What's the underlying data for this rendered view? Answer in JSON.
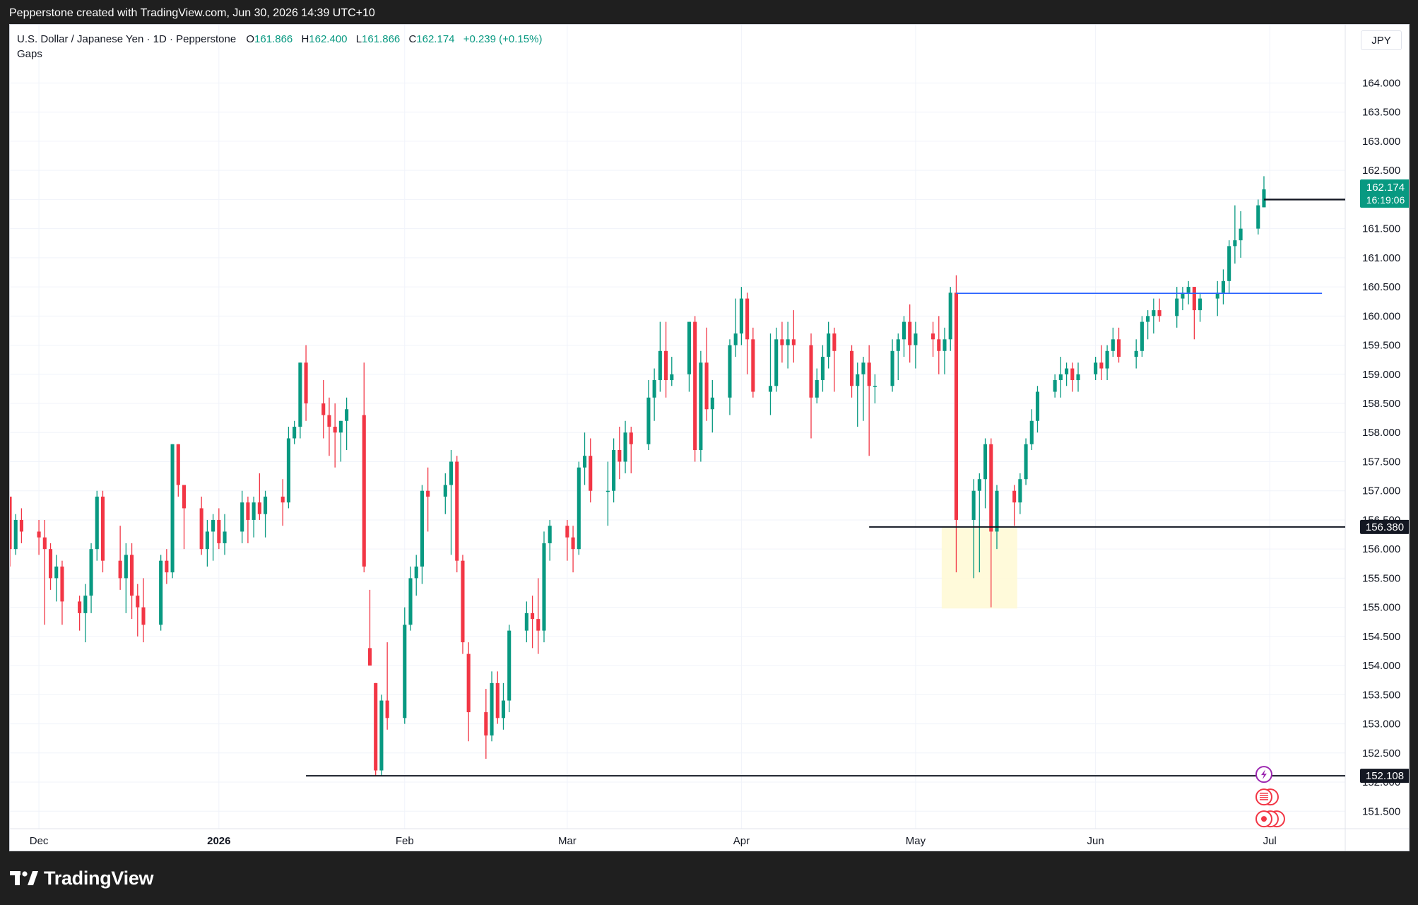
{
  "header": {
    "attribution": "Pepperstone created with TradingView.com, Jun 30, 2026 14:39 UTC+10"
  },
  "legend": {
    "symbol": "U.S. Dollar / Japanese Yen · 1D · Pepperstone",
    "open_label": "O",
    "open": "161.866",
    "high_label": "H",
    "high": "162.400",
    "low_label": "L",
    "low": "161.866",
    "close_label": "C",
    "close": "162.174",
    "change": "+0.239 (+0.15%)",
    "indicator": "Gaps"
  },
  "currency_button": "JPY",
  "footer": {
    "brand": "TradingView"
  },
  "colors": {
    "up": "#089981",
    "down": "#f23645",
    "grid": "#f0f3fa",
    "level_line": "#131722",
    "resistance_line": "#2962ff",
    "highlight_zone": "#fff9d6"
  },
  "chart_data": {
    "type": "candlestick",
    "title": "",
    "ylim": [
      151.2,
      165.0
    ],
    "y_ticks": [
      "151.500",
      "152.000",
      "152.500",
      "153.000",
      "153.500",
      "154.000",
      "154.500",
      "155.000",
      "155.500",
      "156.000",
      "156.500",
      "157.000",
      "157.500",
      "158.000",
      "158.500",
      "159.000",
      "159.500",
      "160.000",
      "160.500",
      "161.000",
      "161.500",
      "162.000",
      "162.500",
      "163.000",
      "163.500",
      "164.000"
    ],
    "x_labels": [
      {
        "label": "Dec",
        "date": "2025-12-01"
      },
      {
        "label": "2026",
        "date": "2026-01-01"
      },
      {
        "label": "Feb",
        "date": "2026-02-02"
      },
      {
        "label": "Mar",
        "date": "2026-03-02"
      },
      {
        "label": "Apr",
        "date": "2026-04-01"
      },
      {
        "label": "May",
        "date": "2026-05-01"
      },
      {
        "label": "Jun",
        "date": "2026-06-01"
      },
      {
        "label": "Jul",
        "date": "2026-07-01"
      }
    ],
    "x_range": [
      "2025-11-26",
      "2026-07-14"
    ],
    "candles": [
      [
        "2025-11-26",
        156.9,
        156.8,
        155.7,
        156.0
      ],
      [
        "2025-11-27",
        156.0,
        156.6,
        155.9,
        156.5
      ],
      [
        "2025-11-28",
        156.5,
        156.7,
        156.1,
        156.3
      ],
      [
        "2025-12-01",
        156.3,
        156.5,
        155.9,
        156.2
      ],
      [
        "2025-12-02",
        156.2,
        156.5,
        154.7,
        156.0
      ],
      [
        "2025-12-03",
        156.0,
        156.1,
        155.3,
        155.5
      ],
      [
        "2025-12-04",
        155.5,
        155.9,
        155.1,
        155.7
      ],
      [
        "2025-12-05",
        155.7,
        155.8,
        154.7,
        155.1
      ],
      [
        "2025-12-08",
        155.1,
        155.2,
        154.6,
        154.9
      ],
      [
        "2025-12-09",
        154.9,
        155.4,
        154.4,
        155.2
      ],
      [
        "2025-12-10",
        155.2,
        156.1,
        154.9,
        156.0
      ],
      [
        "2025-12-11",
        156.0,
        157.0,
        155.8,
        156.9
      ],
      [
        "2025-12-12",
        156.9,
        157.0,
        155.6,
        155.8
      ],
      [
        "2025-12-15",
        155.8,
        156.4,
        155.3,
        155.5
      ],
      [
        "2025-12-16",
        155.5,
        156.1,
        154.9,
        155.9
      ],
      [
        "2025-12-17",
        155.9,
        156.1,
        154.8,
        155.2
      ],
      [
        "2025-12-18",
        155.2,
        155.4,
        154.5,
        155.0
      ],
      [
        "2025-12-19",
        155.0,
        155.5,
        154.4,
        154.7
      ],
      [
        "2025-12-22",
        154.7,
        155.9,
        154.6,
        155.8
      ],
      [
        "2025-12-23",
        155.8,
        156.0,
        155.4,
        155.6
      ],
      [
        "2025-12-24",
        155.6,
        157.8,
        155.5,
        157.8
      ],
      [
        "2025-12-25",
        157.8,
        157.8,
        156.9,
        157.1
      ],
      [
        "2025-12-26",
        157.1,
        157.1,
        156.0,
        156.7
      ],
      [
        "2025-12-29",
        156.7,
        156.9,
        155.9,
        156.0
      ],
      [
        "2025-12-30",
        156.0,
        156.5,
        155.7,
        156.3
      ],
      [
        "2025-12-31",
        156.3,
        156.6,
        155.8,
        156.5
      ],
      [
        "2026-01-01",
        156.5,
        156.7,
        156.0,
        156.1
      ],
      [
        "2026-01-02",
        156.1,
        156.6,
        155.9,
        156.3
      ],
      [
        "2026-01-05",
        156.3,
        157.0,
        156.1,
        156.8
      ],
      [
        "2026-01-06",
        156.8,
        156.9,
        156.1,
        156.5
      ],
      [
        "2026-01-07",
        156.5,
        156.9,
        156.2,
        156.8
      ],
      [
        "2026-01-08",
        156.8,
        157.3,
        156.5,
        156.6
      ],
      [
        "2026-01-09",
        156.6,
        157.0,
        156.2,
        156.9
      ],
      [
        "2026-01-12",
        156.9,
        157.2,
        156.4,
        156.8
      ],
      [
        "2026-01-13",
        156.8,
        158.1,
        156.7,
        157.9
      ],
      [
        "2026-01-14",
        157.9,
        158.2,
        157.8,
        158.1
      ],
      [
        "2026-01-15",
        158.1,
        159.2,
        157.9,
        159.2
      ],
      [
        "2026-01-16",
        159.2,
        159.5,
        158.2,
        158.5
      ],
      [
        "2026-01-19",
        158.5,
        158.9,
        157.9,
        158.3
      ],
      [
        "2026-01-20",
        158.3,
        158.6,
        157.6,
        158.1
      ],
      [
        "2026-01-21",
        158.1,
        158.5,
        157.4,
        158.0
      ],
      [
        "2026-01-22",
        158.0,
        158.2,
        157.5,
        158.2
      ],
      [
        "2026-01-23",
        158.2,
        158.6,
        157.7,
        158.4
      ],
      [
        "2026-01-26",
        158.3,
        159.2,
        155.6,
        155.7
      ],
      [
        "2026-01-27",
        154.3,
        155.3,
        154.0,
        154.0
      ],
      [
        "2026-01-28",
        153.7,
        153.7,
        152.1,
        152.2
      ],
      [
        "2026-01-29",
        152.2,
        153.5,
        152.1,
        153.4
      ],
      [
        "2026-01-30",
        153.4,
        154.4,
        152.9,
        153.1
      ],
      [
        "2026-02-02",
        153.1,
        155.0,
        153.0,
        154.7
      ],
      [
        "2026-02-03",
        154.7,
        155.7,
        154.6,
        155.5
      ],
      [
        "2026-02-04",
        155.5,
        155.9,
        155.2,
        155.7
      ],
      [
        "2026-02-05",
        155.7,
        157.1,
        155.4,
        157.0
      ],
      [
        "2026-02-06",
        157.0,
        157.4,
        156.3,
        156.9
      ],
      [
        "2026-02-09",
        156.9,
        157.3,
        156.6,
        157.1
      ],
      [
        "2026-02-10",
        157.1,
        157.7,
        155.9,
        157.5
      ],
      [
        "2026-02-11",
        157.5,
        157.6,
        155.6,
        155.8
      ],
      [
        "2026-02-12",
        155.8,
        155.9,
        154.2,
        154.4
      ],
      [
        "2026-02-13",
        154.2,
        154.4,
        152.7,
        153.2
      ],
      [
        "2026-02-16",
        153.2,
        153.6,
        152.4,
        152.8
      ],
      [
        "2026-02-17",
        152.8,
        153.9,
        152.7,
        153.7
      ],
      [
        "2026-02-18",
        153.7,
        153.9,
        153.0,
        153.1
      ],
      [
        "2026-02-19",
        153.1,
        153.7,
        152.9,
        153.4
      ],
      [
        "2026-02-20",
        153.4,
        154.7,
        153.2,
        154.6
      ],
      [
        "2026-02-23",
        154.6,
        155.1,
        154.4,
        154.9
      ],
      [
        "2026-02-24",
        154.9,
        155.2,
        154.3,
        154.8
      ],
      [
        "2026-02-25",
        154.8,
        155.5,
        154.2,
        154.6
      ],
      [
        "2026-02-26",
        154.6,
        156.3,
        154.4,
        156.1
      ],
      [
        "2026-02-27",
        156.1,
        156.5,
        155.8,
        156.4
      ],
      [
        "2026-03-02",
        156.4,
        156.5,
        155.8,
        156.2
      ],
      [
        "2026-03-03",
        156.2,
        156.4,
        155.6,
        156.0
      ],
      [
        "2026-03-04",
        156.0,
        157.5,
        155.9,
        157.4
      ],
      [
        "2026-03-05",
        157.4,
        158.0,
        157.1,
        157.6
      ],
      [
        "2026-03-06",
        157.6,
        157.9,
        156.8,
        157.0
      ],
      [
        "2026-03-09",
        157.0,
        157.5,
        156.4,
        157.0
      ],
      [
        "2026-03-10",
        157.0,
        157.9,
        156.8,
        157.7
      ],
      [
        "2026-03-11",
        157.7,
        158.1,
        157.2,
        157.5
      ],
      [
        "2026-03-12",
        157.5,
        158.2,
        157.3,
        158.0
      ],
      [
        "2026-03-13",
        158.0,
        158.1,
        157.3,
        157.8
      ],
      [
        "2026-03-16",
        157.8,
        158.9,
        157.7,
        158.6
      ],
      [
        "2026-03-17",
        158.6,
        159.1,
        158.2,
        158.9
      ],
      [
        "2026-03-18",
        158.9,
        159.9,
        158.7,
        159.4
      ],
      [
        "2026-03-19",
        159.4,
        159.9,
        158.6,
        158.9
      ],
      [
        "2026-03-20",
        158.9,
        159.3,
        158.8,
        159.0
      ],
      [
        "2026-03-23",
        159.0,
        159.9,
        158.7,
        159.9
      ],
      [
        "2026-03-24",
        159.9,
        160.0,
        157.5,
        157.7
      ],
      [
        "2026-03-25",
        157.7,
        159.4,
        157.5,
        159.2
      ],
      [
        "2026-03-26",
        159.2,
        159.8,
        158.2,
        158.4
      ],
      [
        "2026-03-27",
        158.4,
        158.9,
        158.0,
        158.6
      ],
      [
        "2026-03-30",
        158.6,
        159.6,
        158.3,
        159.5
      ],
      [
        "2026-03-31",
        159.5,
        160.3,
        159.3,
        159.7
      ],
      [
        "2026-04-01",
        159.7,
        160.5,
        159.5,
        160.3
      ],
      [
        "2026-04-02",
        160.3,
        160.4,
        159.0,
        159.6
      ],
      [
        "2026-04-03",
        159.6,
        159.8,
        158.6,
        158.7
      ],
      [
        "2026-04-06",
        158.7,
        159.7,
        158.3,
        158.8
      ],
      [
        "2026-04-07",
        158.8,
        159.8,
        158.7,
        159.6
      ],
      [
        "2026-04-08",
        159.6,
        159.9,
        159.2,
        159.5
      ],
      [
        "2026-04-09",
        159.5,
        159.9,
        159.1,
        159.6
      ],
      [
        "2026-04-10",
        159.6,
        160.1,
        159.2,
        159.5
      ],
      [
        "2026-04-13",
        159.5,
        159.7,
        157.9,
        158.6
      ],
      [
        "2026-04-14",
        158.6,
        159.1,
        158.5,
        158.9
      ],
      [
        "2026-04-15",
        158.9,
        159.5,
        158.7,
        159.3
      ],
      [
        "2026-04-16",
        159.3,
        159.9,
        159.1,
        159.7
      ],
      [
        "2026-04-17",
        159.7,
        159.8,
        158.7,
        159.4
      ],
      [
        "2026-04-20",
        159.4,
        159.5,
        158.6,
        158.8
      ],
      [
        "2026-04-21",
        158.8,
        159.2,
        158.1,
        159.0
      ],
      [
        "2026-04-22",
        159.0,
        159.3,
        158.2,
        159.2
      ],
      [
        "2026-04-23",
        159.2,
        159.5,
        157.6,
        158.8
      ],
      [
        "2026-04-24",
        158.8,
        159.0,
        158.5,
        158.8
      ],
      [
        "2026-04-27",
        158.8,
        159.6,
        158.7,
        159.4
      ],
      [
        "2026-04-28",
        159.4,
        159.7,
        158.9,
        159.6
      ],
      [
        "2026-04-29",
        159.6,
        160.0,
        159.3,
        159.9
      ],
      [
        "2026-04-30",
        159.9,
        160.2,
        159.2,
        159.5
      ],
      [
        "2026-05-01",
        159.5,
        159.9,
        159.1,
        159.7
      ],
      [
        "2026-05-04",
        159.7,
        159.9,
        159.3,
        159.6
      ],
      [
        "2026-05-05",
        159.6,
        160.0,
        159.0,
        159.4
      ],
      [
        "2026-05-06",
        159.4,
        159.8,
        159.0,
        159.6
      ],
      [
        "2026-05-07",
        159.6,
        160.5,
        159.4,
        160.4
      ],
      [
        "2026-05-08",
        160.4,
        160.7,
        155.6,
        156.5
      ],
      [
        "2026-05-11",
        156.5,
        157.2,
        155.5,
        157.0
      ],
      [
        "2026-05-12",
        157.0,
        157.3,
        155.6,
        157.2
      ],
      [
        "2026-05-13",
        157.2,
        157.9,
        156.7,
        157.8
      ],
      [
        "2026-05-14",
        157.8,
        157.9,
        155.0,
        156.3
      ],
      [
        "2026-05-15",
        156.3,
        157.1,
        156.0,
        157.0
      ],
      [
        "2026-05-18",
        157.0,
        157.1,
        156.4,
        156.8
      ],
      [
        "2026-05-19",
        156.8,
        157.3,
        156.6,
        157.2
      ],
      [
        "2026-05-20",
        157.2,
        157.9,
        157.1,
        157.8
      ],
      [
        "2026-05-21",
        157.8,
        158.4,
        157.7,
        158.2
      ],
      [
        "2026-05-22",
        158.2,
        158.8,
        158.0,
        158.7
      ],
      [
        "2026-05-25",
        158.7,
        159.0,
        158.6,
        158.9
      ],
      [
        "2026-05-26",
        158.9,
        159.3,
        158.6,
        159.0
      ],
      [
        "2026-05-27",
        159.0,
        159.2,
        158.8,
        159.1
      ],
      [
        "2026-05-28",
        159.1,
        159.2,
        158.7,
        158.9
      ],
      [
        "2026-05-29",
        158.9,
        159.2,
        158.7,
        159.0
      ],
      [
        "2026-06-01",
        159.0,
        159.3,
        158.9,
        159.2
      ],
      [
        "2026-06-02",
        159.2,
        159.5,
        158.9,
        159.1
      ],
      [
        "2026-06-03",
        159.1,
        159.5,
        158.9,
        159.4
      ],
      [
        "2026-06-04",
        159.4,
        159.8,
        159.3,
        159.6
      ],
      [
        "2026-06-05",
        159.6,
        159.8,
        159.2,
        159.3
      ],
      [
        "2026-06-08",
        159.3,
        159.6,
        159.1,
        159.4
      ],
      [
        "2026-06-09",
        159.4,
        160.0,
        159.3,
        159.9
      ],
      [
        "2026-06-10",
        159.9,
        160.1,
        159.6,
        160.0
      ],
      [
        "2026-06-11",
        160.0,
        160.3,
        159.7,
        160.1
      ],
      [
        "2026-06-12",
        160.1,
        160.3,
        159.9,
        160.0
      ],
      [
        "2026-06-15",
        160.0,
        160.5,
        159.8,
        160.3
      ],
      [
        "2026-06-16",
        160.3,
        160.5,
        160.1,
        160.4
      ],
      [
        "2026-06-17",
        160.4,
        160.6,
        160.2,
        160.5
      ],
      [
        "2026-06-18",
        160.5,
        160.5,
        159.6,
        160.1
      ],
      [
        "2026-06-19",
        160.1,
        160.4,
        159.9,
        160.3
      ],
      [
        "2026-06-22",
        160.3,
        160.6,
        160.0,
        160.4
      ],
      [
        "2026-06-23",
        160.4,
        160.8,
        160.2,
        160.6
      ],
      [
        "2026-06-24",
        160.6,
        161.3,
        160.4,
        161.2
      ],
      [
        "2026-06-25",
        161.2,
        161.9,
        160.9,
        161.3
      ],
      [
        "2026-06-26",
        161.3,
        161.8,
        161.0,
        161.5
      ],
      [
        "2026-06-29",
        161.5,
        162.0,
        161.4,
        161.9
      ],
      [
        "2026-06-30",
        161.866,
        162.4,
        161.866,
        162.174
      ]
    ],
    "horizontal_levels": [
      {
        "price": 152.108,
        "label": "152.108",
        "from": "2026-01-16",
        "to": "2026-07-14"
      },
      {
        "price": 156.38,
        "label": "156.380",
        "from": "2026-04-23",
        "to": "2026-07-14"
      },
      {
        "price": 162.0,
        "label": "162.000",
        "from": "2026-06-30",
        "to": "2026-07-14"
      }
    ],
    "resistance_line": {
      "price": 160.39,
      "from": "2026-05-08",
      "to": "2026-07-10"
    },
    "gap_zone": {
      "from": "2026-05-06",
      "to": "2026-05-18",
      "top": 156.38,
      "bottom": 154.98
    },
    "last_price": {
      "label": "162.174",
      "countdown": "16:19:06"
    }
  }
}
